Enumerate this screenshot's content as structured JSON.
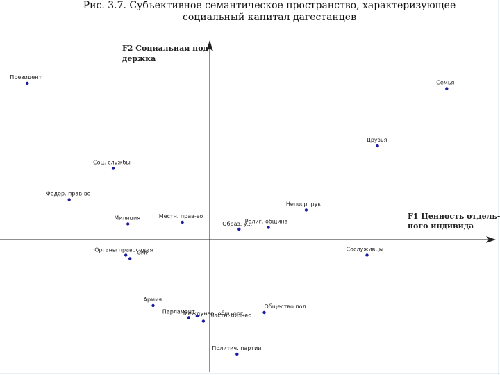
{
  "chart_data": {
    "type": "scatter",
    "title_lines": [
      "Рис. 3.7. Субъективное семантическое пространство, характеризующее",
      "социальный капитал дагестанцев"
    ],
    "xlabel_lines": [
      "F1 Ценность отдель-",
      "ного индивида"
    ],
    "ylabel_lines": [
      "F2 Социальная под-",
      "держка"
    ],
    "xlim": [
      -1.0,
      1.4
    ],
    "ylim": [
      -0.82,
      1.2
    ],
    "grid": false,
    "points": [
      {
        "label": "Президент",
        "x": -0.87,
        "y": 0.9
      },
      {
        "label": "Семья",
        "x": 1.13,
        "y": 0.87
      },
      {
        "label": "Друзья",
        "x": 0.8,
        "y": 0.54
      },
      {
        "label": "Соц. службы",
        "x": -0.46,
        "y": 0.41
      },
      {
        "label": "Федер. прав-во",
        "x": -0.67,
        "y": 0.23
      },
      {
        "label": "Непоср. рук.",
        "x": 0.46,
        "y": 0.17
      },
      {
        "label": "Милиция",
        "x": -0.39,
        "y": 0.09
      },
      {
        "label": "Местн. прав-во",
        "x": -0.13,
        "y": 0.1
      },
      {
        "label": "Образ. у...",
        "x": 0.14,
        "y": 0.06
      },
      {
        "label": "Религ. община",
        "x": 0.28,
        "y": 0.07
      },
      {
        "label": "Органы правосудия",
        "x": -0.4,
        "y": -0.09
      },
      {
        "label": "СМИ",
        "x": -0.38,
        "y": -0.11
      },
      {
        "label": "Сослуживцы",
        "x": 0.75,
        "y": -0.09
      },
      {
        "label": "Армия",
        "x": -0.27,
        "y": -0.38
      },
      {
        "label": "Парламент",
        "x": -0.1,
        "y": -0.45
      },
      {
        "label": "Частн. бизнес",
        "x": -0.03,
        "y": -0.47
      },
      {
        "label": "Междунар. общ. орг.",
        "x": -0.06,
        "y": -0.44
      },
      {
        "label": "Общество пол.",
        "x": 0.26,
        "y": -0.42
      },
      {
        "label": "Политич. партии",
        "x": 0.13,
        "y": -0.66
      }
    ]
  },
  "colors": {
    "point": "#1a1aa0",
    "axis": "#222222",
    "frame": "#cfe3ea"
  }
}
